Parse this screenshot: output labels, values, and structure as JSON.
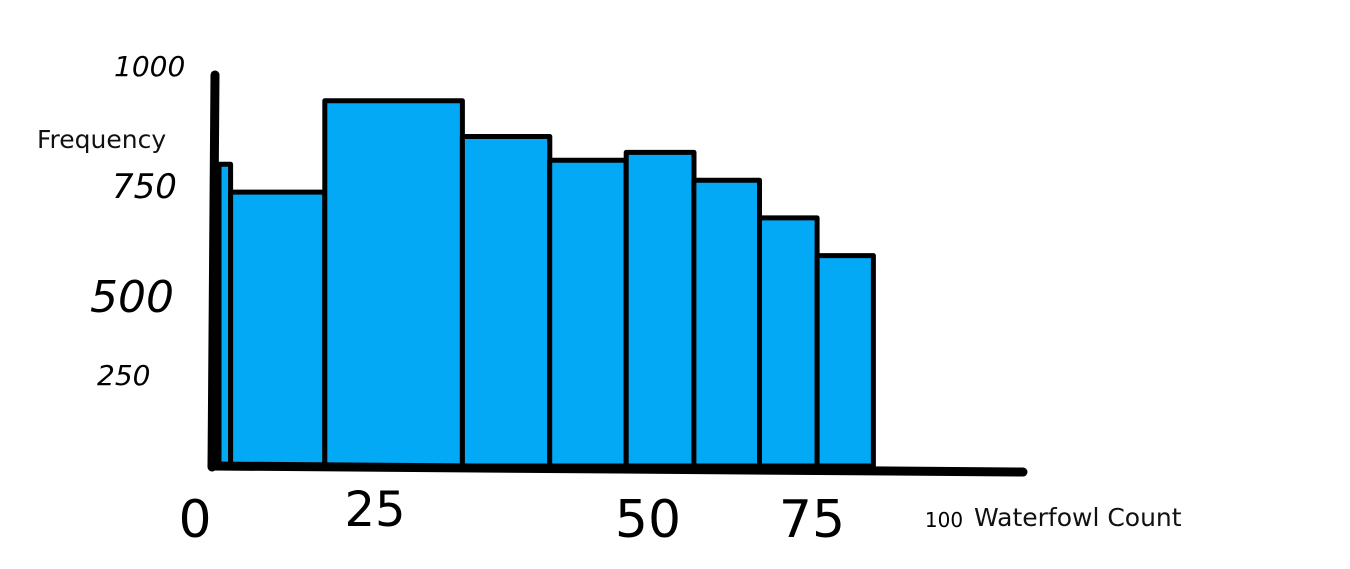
{
  "chart_data": {
    "type": "bar",
    "ylabel": "Frequency",
    "xlabel": "Waterfowl Count",
    "y_ticks": [
      {
        "value": 250,
        "label": "250"
      },
      {
        "value": 500,
        "label": "500"
      },
      {
        "value": 750,
        "label": "750"
      },
      {
        "value": 1000,
        "label": "1000"
      }
    ],
    "x_ticks": [
      {
        "value": 0,
        "label": "0"
      },
      {
        "value": 25,
        "label": "25"
      },
      {
        "value": 50,
        "label": "50"
      },
      {
        "value": 75,
        "label": "75"
      },
      {
        "value": 100,
        "label": "100"
      }
    ],
    "bins": [
      {
        "start": 0,
        "end": 2,
        "value": 760
      },
      {
        "start": 2,
        "end": 17,
        "value": 690
      },
      {
        "start": 17,
        "end": 33,
        "value": 920
      },
      {
        "start": 33,
        "end": 41,
        "value": 830
      },
      {
        "start": 41,
        "end": 48,
        "value": 770
      },
      {
        "start": 48,
        "end": 57,
        "value": 790
      },
      {
        "start": 57,
        "end": 67,
        "value": 720
      },
      {
        "start": 67,
        "end": 76,
        "value": 625
      },
      {
        "start": 76,
        "end": 87,
        "value": 530
      }
    ],
    "bar_color": "#03a9f4",
    "outline_color": "#000000",
    "ylim": [
      0,
      1000
    ],
    "xlim": [
      0,
      100
    ],
    "grid": false,
    "legend": "none"
  }
}
